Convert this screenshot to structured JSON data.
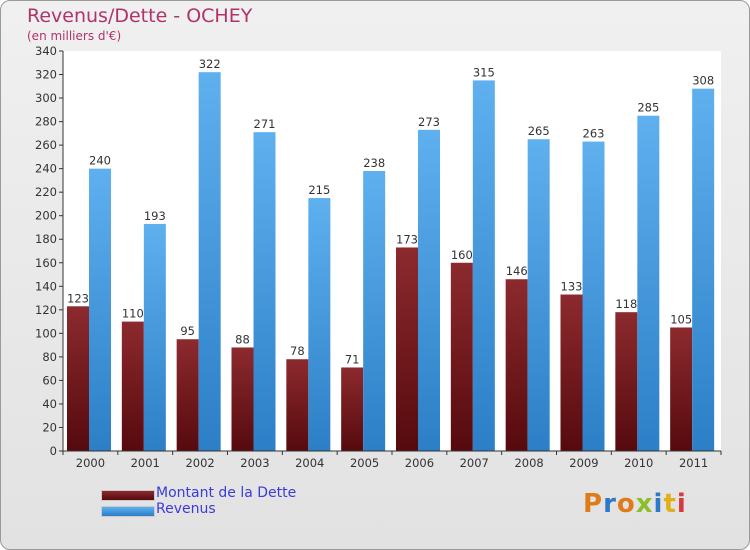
{
  "header": {
    "title": "Revenus/Dette - OCHEY",
    "subtitle": "(en milliers d'€)"
  },
  "colors": {
    "dette": "#7a1a1e",
    "revenus": "#4a9fe0",
    "title": "#b0336a",
    "legend_text": "#3b3bd8"
  },
  "legend": {
    "items": [
      {
        "label": "Montant de la Dette",
        "color": "#7a1a1e"
      },
      {
        "label": "Revenus",
        "color": "#4a9fe0"
      }
    ]
  },
  "logo": {
    "letters": [
      "P",
      "r",
      "o",
      "x",
      "i",
      "t",
      "i"
    ],
    "colors": [
      "#e07b1a",
      "#2e78c8",
      "#e07b1a",
      "#8bbf2a",
      "#2e78c8",
      "#e0b01a",
      "#d83a3a"
    ]
  },
  "chart_data": {
    "type": "bar",
    "title": "Revenus/Dette - OCHEY",
    "subtitle": "(en milliers d'€)",
    "categories": [
      "2000",
      "2001",
      "2002",
      "2003",
      "2004",
      "2005",
      "2006",
      "2007",
      "2008",
      "2009",
      "2010",
      "2011"
    ],
    "series": [
      {
        "name": "Montant de la Dette",
        "values": [
          123,
          110,
          95,
          88,
          78,
          71,
          173,
          160,
          146,
          133,
          118,
          105
        ]
      },
      {
        "name": "Revenus",
        "values": [
          240,
          193,
          322,
          271,
          215,
          238,
          273,
          315,
          265,
          263,
          285,
          308
        ]
      }
    ],
    "ylim": [
      0,
      340
    ],
    "yticks": [
      0,
      20,
      40,
      60,
      80,
      100,
      120,
      140,
      160,
      180,
      200,
      220,
      240,
      260,
      280,
      300,
      320,
      340
    ],
    "grid": false,
    "legend_position": "bottom-left"
  }
}
